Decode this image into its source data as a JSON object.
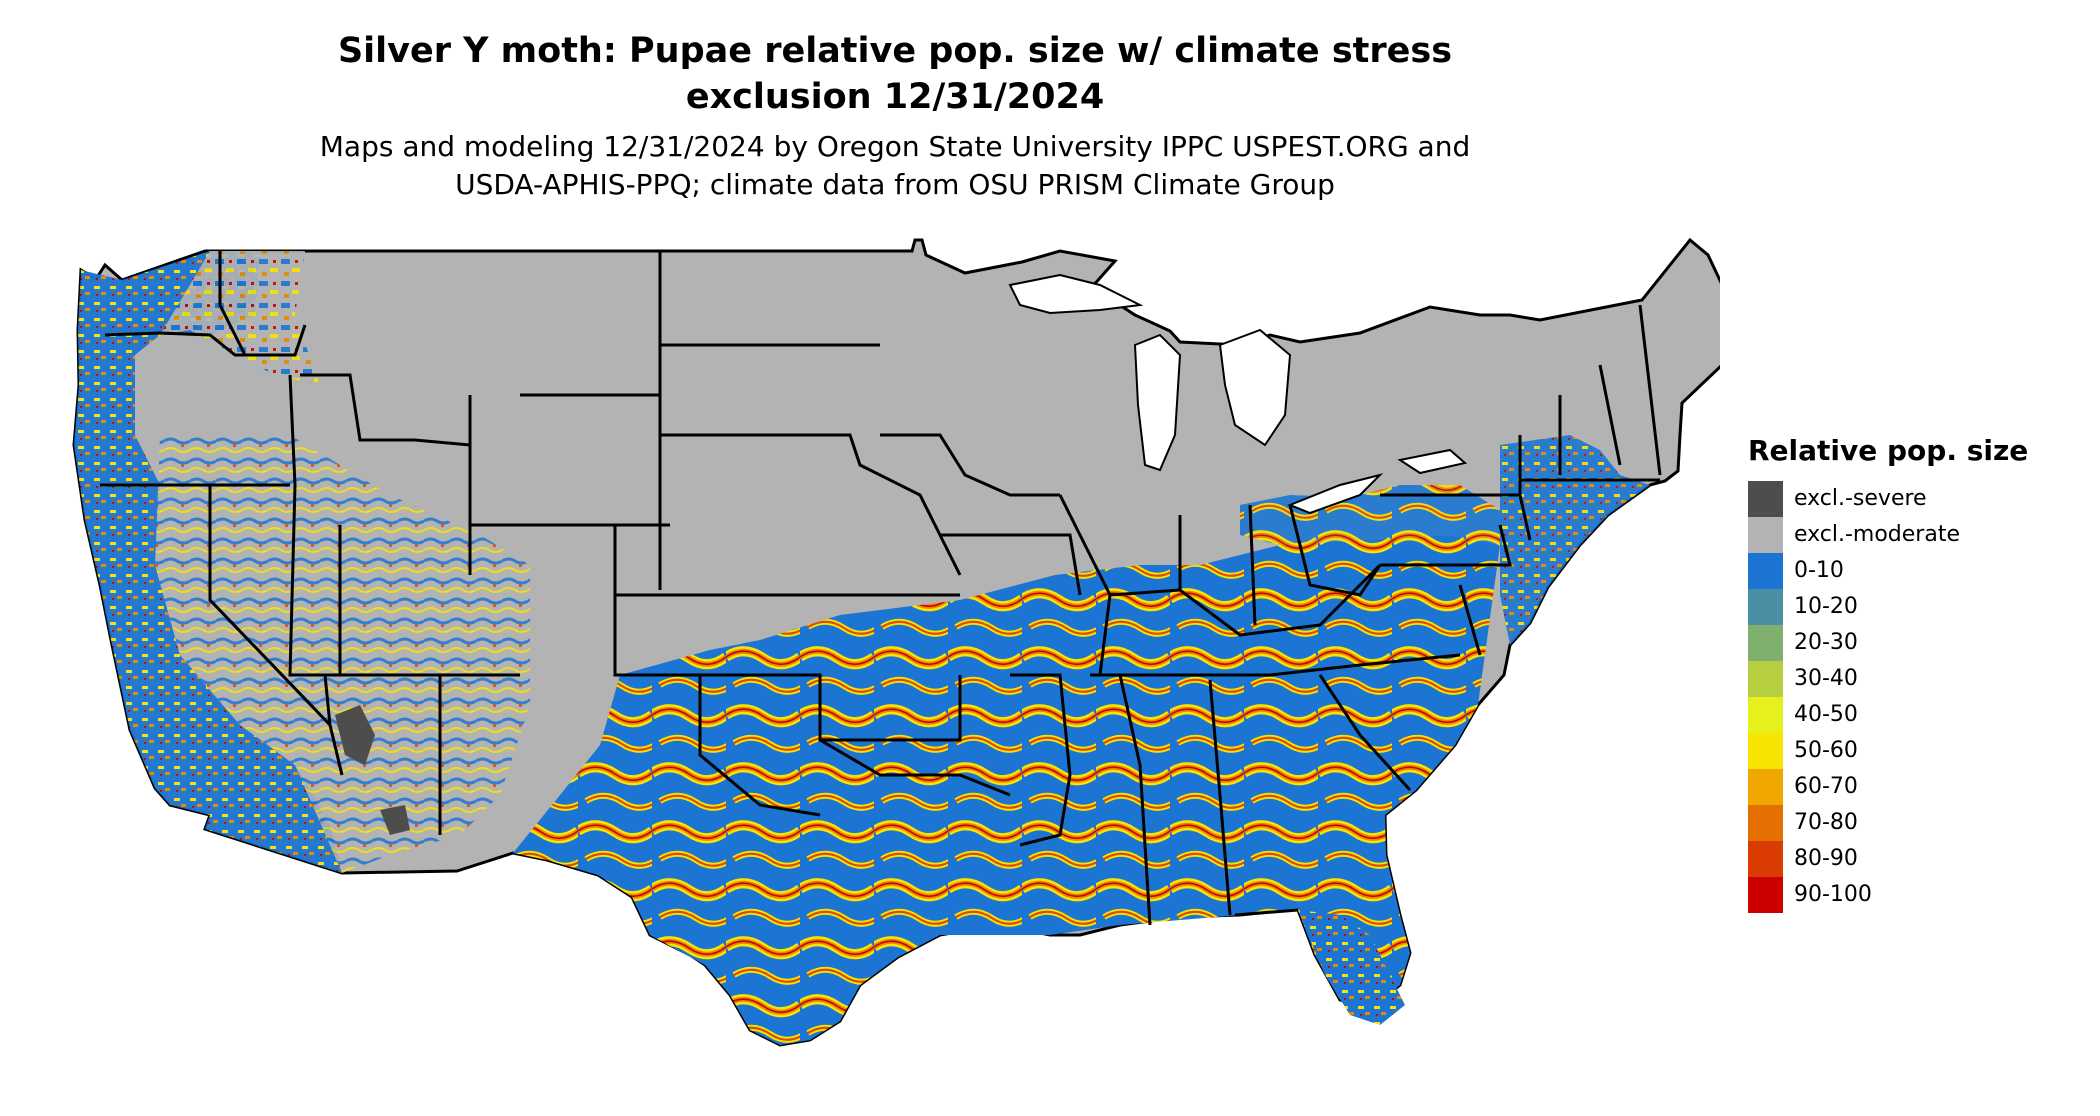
{
  "header": {
    "title_line1": "Silver Y moth: Pupae relative pop. size w/ climate stress",
    "title_line2": "exclusion 12/31/2024",
    "subtitle_line1": "Maps and modeling 12/31/2024 by Oregon State University IPPC USPEST.ORG and",
    "subtitle_line2": "USDA-APHIS-PPQ; climate data from OSU PRISM Climate Group"
  },
  "map": {
    "region": "Contiguous United States",
    "land_color": "#b3b3b3",
    "border_color": "#000000",
    "pattern_colors": [
      "#1c75d2",
      "#f7e400",
      "#e58a00",
      "#e04a00",
      "#cc0000"
    ]
  },
  "legend": {
    "title": "Relative pop. size",
    "items": [
      {
        "label": "excl.-severe",
        "color": "#4d4d4d"
      },
      {
        "label": "excl.-moderate",
        "color": "#b3b3b3"
      },
      {
        "label": "0-10",
        "color": "#1c75d2"
      },
      {
        "label": "10-20",
        "color": "#4a8fa3"
      },
      {
        "label": "20-30",
        "color": "#7fb06e"
      },
      {
        "label": "30-40",
        "color": "#b5cf40"
      },
      {
        "label": "40-50",
        "color": "#e5f01c"
      },
      {
        "label": "50-60",
        "color": "#f7e400"
      },
      {
        "label": "60-70",
        "color": "#f0a800"
      },
      {
        "label": "70-80",
        "color": "#e37000"
      },
      {
        "label": "80-90",
        "color": "#d93b00"
      },
      {
        "label": "90-100",
        "color": "#cc0000"
      }
    ]
  }
}
